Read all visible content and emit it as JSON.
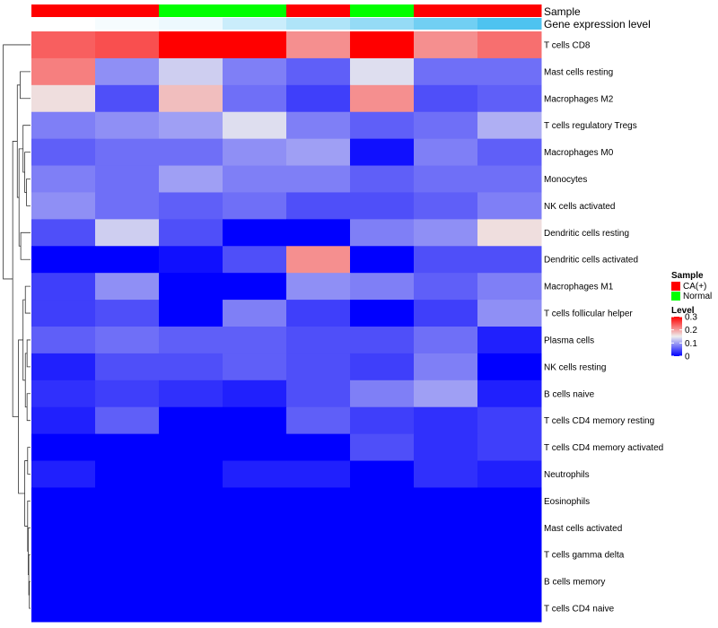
{
  "chart_data": {
    "type": "heatmap",
    "title": "",
    "annotation_tracks": [
      {
        "name": "Sample",
        "values": [
          "CA(+)",
          "CA(+)",
          "Normal",
          "Normal",
          "CA(+)",
          "Normal",
          "CA(+)",
          "CA(+)"
        ]
      },
      {
        "name": "Gene expression level",
        "values": [
          0,
          0.05,
          0.1,
          0.3,
          0.45,
          0.6,
          0.8,
          1.0
        ]
      }
    ],
    "rows": [
      "T cells CD8",
      "Mast cells resting",
      "Macrophages M2",
      "T cells regulatory  Tregs",
      "Macrophages M0",
      "Monocytes",
      "NK cells activated",
      "Dendritic cells resting",
      "Dendritic cells activated",
      "Macrophages M1",
      "T cells follicular helper",
      "Plasma cells",
      "NK cells resting",
      "B cells naive",
      "T cells CD4 memory resting",
      "T cells CD4 memory activated",
      "Neutrophils",
      "Eosinophils",
      "Mast cells activated",
      "T cells gamma delta",
      "B cells memory",
      "T cells CD4 naive"
    ],
    "columns_count": 8,
    "values": [
      [
        0.24,
        0.25,
        0.3,
        0.3,
        0.21,
        0.3,
        0.21,
        0.23
      ],
      [
        0.22,
        0.09,
        0.13,
        0.08,
        0.06,
        0.14,
        0.07,
        0.07
      ],
      [
        0.16,
        0.05,
        0.18,
        0.07,
        0.04,
        0.21,
        0.05,
        0.06
      ],
      [
        0.08,
        0.09,
        0.1,
        0.14,
        0.08,
        0.06,
        0.07,
        0.11
      ],
      [
        0.06,
        0.07,
        0.07,
        0.09,
        0.1,
        0.01,
        0.08,
        0.06
      ],
      [
        0.08,
        0.07,
        0.1,
        0.08,
        0.08,
        0.06,
        0.07,
        0.07
      ],
      [
        0.09,
        0.07,
        0.06,
        0.07,
        0.05,
        0.05,
        0.06,
        0.08
      ],
      [
        0.05,
        0.13,
        0.05,
        0.0,
        0.0,
        0.08,
        0.09,
        0.16
      ],
      [
        0.0,
        0.0,
        0.01,
        0.05,
        0.21,
        0.0,
        0.05,
        0.05
      ],
      [
        0.04,
        0.09,
        0.0,
        0.0,
        0.09,
        0.08,
        0.06,
        0.08
      ],
      [
        0.04,
        0.05,
        0.0,
        0.08,
        0.04,
        0.0,
        0.04,
        0.09
      ],
      [
        0.06,
        0.07,
        0.06,
        0.06,
        0.05,
        0.05,
        0.07,
        0.02
      ],
      [
        0.02,
        0.05,
        0.05,
        0.06,
        0.05,
        0.04,
        0.08,
        0.0
      ],
      [
        0.03,
        0.04,
        0.03,
        0.02,
        0.05,
        0.08,
        0.1,
        0.02
      ],
      [
        0.02,
        0.06,
        0.0,
        0.0,
        0.06,
        0.04,
        0.03,
        0.04
      ],
      [
        0.0,
        0.0,
        0.0,
        0.0,
        0.0,
        0.05,
        0.03,
        0.04
      ],
      [
        0.02,
        0.0,
        0.0,
        0.02,
        0.02,
        0.0,
        0.03,
        0.02
      ],
      [
        0.0,
        0.0,
        0.0,
        0.0,
        0.0,
        0.0,
        0.0,
        0.0
      ],
      [
        0.0,
        0.0,
        0.0,
        0.0,
        0.0,
        0.0,
        0.0,
        0.0
      ],
      [
        0.0,
        0.0,
        0.0,
        0.0,
        0.0,
        0.0,
        0.0,
        0.0
      ],
      [
        0.0,
        0.0,
        0.0,
        0.0,
        0.0,
        0.0,
        0.0,
        0.0
      ],
      [
        0.0,
        0.0,
        0.0,
        0.0,
        0.0,
        0.0,
        0.0,
        0.0
      ]
    ],
    "color_scale": {
      "min": 0,
      "mid": 0.15,
      "max": 0.3,
      "low": "#0000FF",
      "mid_color": "#EEEEEE",
      "high": "#FF0000"
    },
    "legend": {
      "position": "right",
      "sample_title": "Sample",
      "sample_entries": [
        {
          "label": "CA(+)",
          "color": "#FF0000"
        },
        {
          "label": "Normal",
          "color": "#00FF00"
        }
      ],
      "level_title": "Level",
      "level_ticks": [
        {
          "label": "0.3",
          "value": 0.3
        },
        {
          "label": "0.2",
          "value": 0.2
        },
        {
          "label": "0.1",
          "value": 0.1
        },
        {
          "label": "0",
          "value": 0
        }
      ]
    },
    "row_dendrogram": true
  }
}
